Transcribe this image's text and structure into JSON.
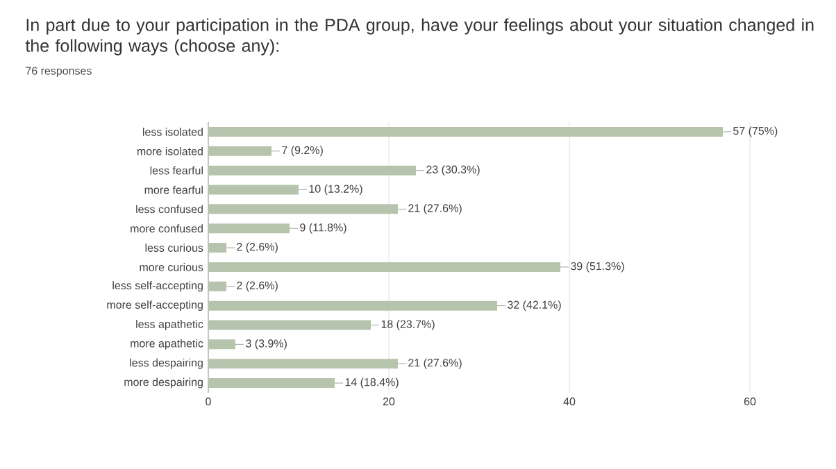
{
  "chart_data": {
    "type": "bar",
    "orientation": "horizontal",
    "title": "In part due to your participation in the PDA group, have your feelings about your situation changed in the following ways (choose any):",
    "subtitle": "76 responses",
    "categories": [
      "less isolated",
      "more isolated",
      "less fearful",
      "more fearful",
      "less confused",
      "more confused",
      "less curious",
      "more curious",
      "less self-accepting",
      "more self-accepting",
      "less apathetic",
      "more apathetic",
      "less despairing",
      "more despairing"
    ],
    "values": [
      57,
      7,
      23,
      10,
      21,
      9,
      2,
      39,
      2,
      32,
      18,
      3,
      21,
      14
    ],
    "value_labels": [
      "57 (75%)",
      "7 (9.2%)",
      "23 (30.3%)",
      "10 (13.2%)",
      "21 (27.6%)",
      "9 (11.8%)",
      "2 (2.6%)",
      "39 (51.3%)",
      "2 (2.6%)",
      "32 (42.1%)",
      "18 (23.7%)",
      "3 (3.9%)",
      "21 (27.6%)",
      "14 (18.4%)"
    ],
    "color": "#b7c4ad",
    "xlim": [
      0,
      60
    ],
    "xticks": [
      0,
      20,
      40,
      60
    ],
    "grid": "x"
  }
}
